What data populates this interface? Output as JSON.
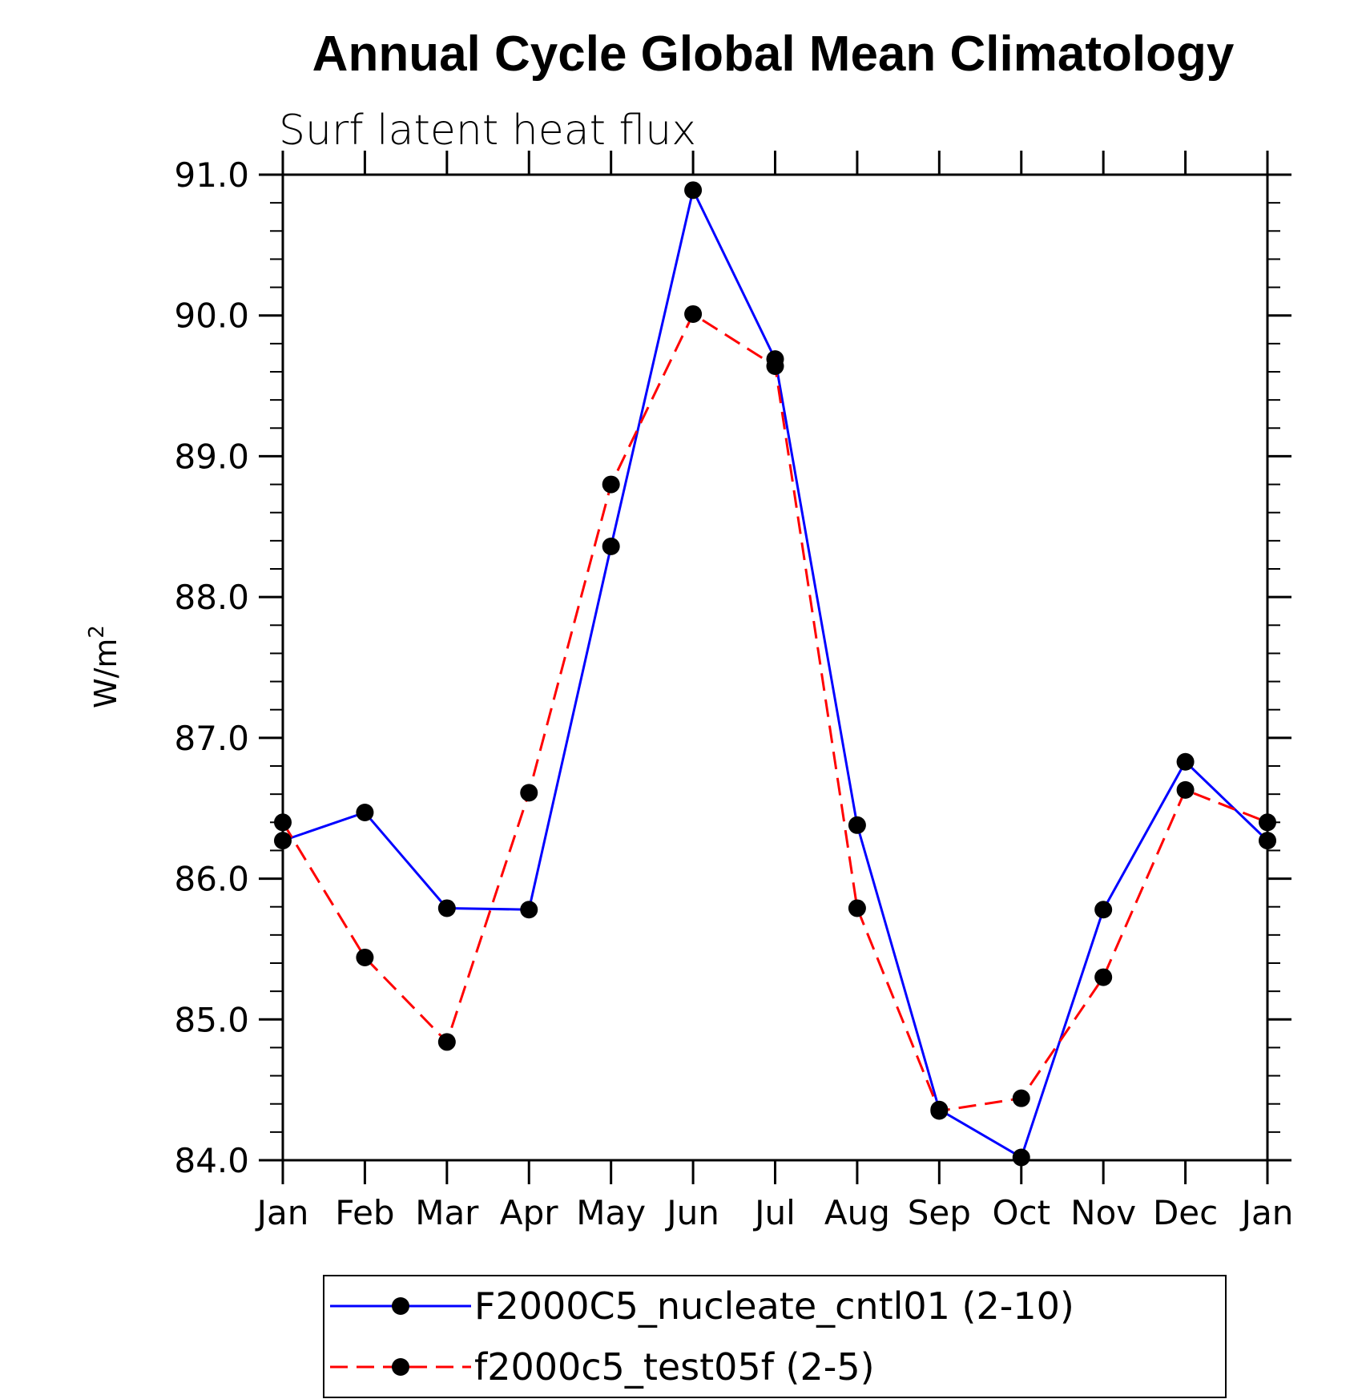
{
  "chart_data": {
    "type": "line",
    "title": "Annual Cycle Global Mean Climatology",
    "subtitle": "Surf latent heat flux",
    "ylabel": "W/m",
    "ylabel_superscript": "2",
    "ylim": [
      84.0,
      91.0
    ],
    "yticks": [
      "84.0",
      "85.0",
      "86.0",
      "87.0",
      "88.0",
      "89.0",
      "90.0",
      "91.0"
    ],
    "categories": [
      "Jan",
      "Feb",
      "Mar",
      "Apr",
      "May",
      "Jun",
      "Jul",
      "Aug",
      "Sep",
      "Oct",
      "Nov",
      "Dec",
      "Jan"
    ],
    "series": [
      {
        "name": "F2000C5_nucleate_cntl01 (2-10)",
        "color": "#0000ff",
        "style": "solid",
        "values": [
          86.27,
          86.47,
          85.79,
          85.78,
          88.36,
          90.89,
          89.69,
          86.38,
          84.36,
          84.02,
          85.78,
          86.83,
          86.27
        ]
      },
      {
        "name": "f2000c5_test05f (2-5)",
        "color": "#ff0000",
        "style": "dashed",
        "values": [
          86.4,
          85.44,
          84.84,
          86.61,
          88.8,
          90.01,
          89.64,
          85.79,
          84.35,
          84.44,
          85.3,
          86.63,
          86.4
        ]
      }
    ],
    "legend_position": "bottom",
    "grid": false
  }
}
